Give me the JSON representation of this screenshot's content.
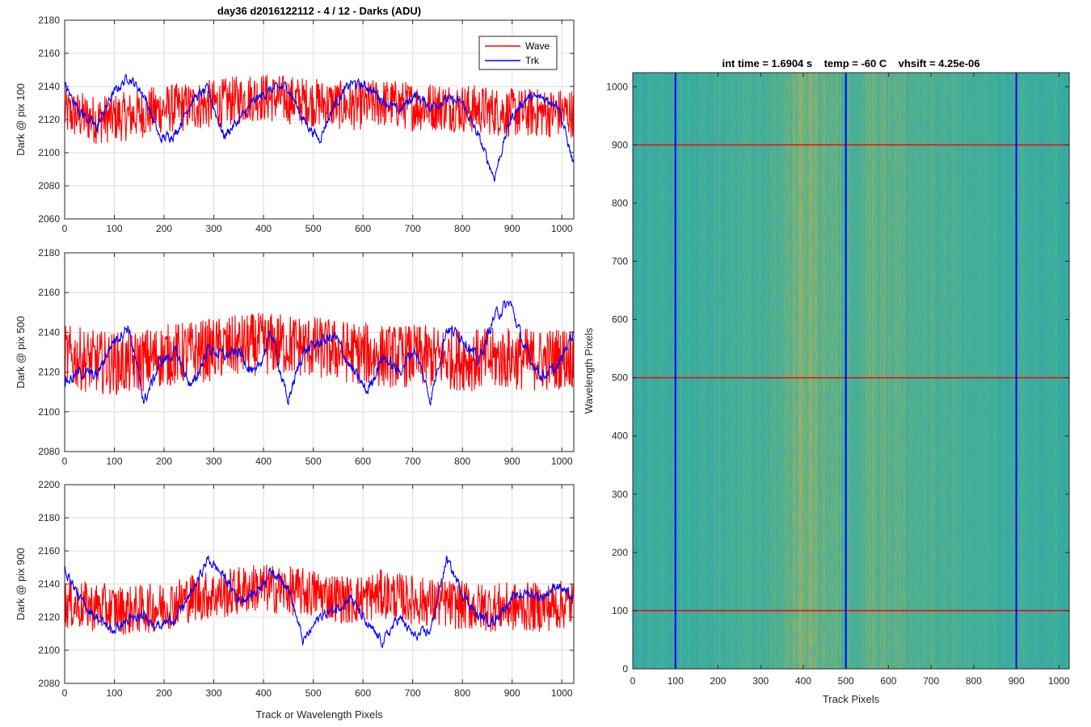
{
  "figure_title": "day36 d2016122112 - 4 / 12 - Darks (ADU)",
  "x_tick_labels": [
    "0",
    "100",
    "200",
    "300",
    "400",
    "500",
    "600",
    "700",
    "800",
    "900",
    "1000"
  ],
  "chart_data": [
    {
      "type": "line",
      "title": "day36 d2016122112 - 4 / 12 - Darks (ADU)",
      "ylabel": "Dark @ pix 100",
      "xlabel": "",
      "xlim": [
        0,
        1024
      ],
      "ylim": [
        2060,
        2180
      ],
      "yticks": [
        2060,
        2080,
        2100,
        2120,
        2140,
        2160,
        2180
      ],
      "grid": true,
      "legend": {
        "placement": "top-right",
        "entries": [
          "Wave",
          "Trk"
        ]
      },
      "series": [
        {
          "name": "Wave",
          "color": "#ff0000",
          "x": [
            0,
            64,
            128,
            192,
            256,
            320,
            384,
            448,
            512,
            576,
            640,
            704,
            768,
            832,
            896,
            960,
            1024
          ],
          "values": [
            2124,
            2120,
            2122,
            2126,
            2128,
            2130,
            2134,
            2132,
            2130,
            2128,
            2130,
            2128,
            2128,
            2126,
            2124,
            2124,
            2124
          ],
          "noise_amplitude": 15
        },
        {
          "name": "Trk",
          "color": "#0000ff",
          "x": [
            0,
            32,
            64,
            96,
            128,
            160,
            192,
            224,
            256,
            288,
            320,
            352,
            384,
            416,
            448,
            480,
            512,
            544,
            576,
            608,
            640,
            672,
            704,
            736,
            768,
            800,
            832,
            864,
            896,
            928,
            960,
            992,
            1024
          ],
          "values": [
            2140,
            2125,
            2115,
            2135,
            2146,
            2135,
            2108,
            2112,
            2132,
            2138,
            2110,
            2120,
            2132,
            2138,
            2140,
            2120,
            2108,
            2130,
            2142,
            2140,
            2132,
            2125,
            2135,
            2128,
            2132,
            2130,
            2110,
            2085,
            2120,
            2133,
            2133,
            2130,
            2092
          ],
          "noise_amplitude": 6
        }
      ]
    },
    {
      "type": "line",
      "ylabel": "Dark @ pix 500",
      "xlabel": "",
      "xlim": [
        0,
        1024
      ],
      "ylim": [
        2080,
        2180
      ],
      "yticks": [
        2080,
        2100,
        2120,
        2140,
        2160,
        2180
      ],
      "grid": true,
      "series": [
        {
          "name": "Wave",
          "color": "#ff0000",
          "x": [
            0,
            64,
            128,
            192,
            256,
            320,
            384,
            448,
            512,
            576,
            640,
            704,
            768,
            832,
            896,
            960,
            1024
          ],
          "values": [
            2128,
            2125,
            2124,
            2128,
            2130,
            2132,
            2134,
            2134,
            2132,
            2130,
            2128,
            2128,
            2127,
            2126,
            2127,
            2126,
            2128
          ],
          "noise_amplitude": 16
        },
        {
          "name": "Trk",
          "color": "#0000ff",
          "x": [
            0,
            32,
            64,
            96,
            128,
            160,
            192,
            224,
            256,
            288,
            320,
            352,
            384,
            416,
            448,
            480,
            512,
            544,
            576,
            608,
            640,
            672,
            704,
            736,
            768,
            800,
            832,
            864,
            896,
            928,
            960,
            992,
            1024
          ],
          "values": [
            2115,
            2120,
            2118,
            2135,
            2143,
            2105,
            2125,
            2130,
            2112,
            2132,
            2128,
            2130,
            2118,
            2140,
            2105,
            2130,
            2135,
            2138,
            2122,
            2110,
            2128,
            2120,
            2132,
            2106,
            2142,
            2138,
            2125,
            2148,
            2155,
            2130,
            2118,
            2122,
            2142
          ],
          "noise_amplitude": 6
        }
      ]
    },
    {
      "type": "line",
      "ylabel": "Dark @ pix 900",
      "xlabel": "Track or Wavelength Pixels",
      "xlim": [
        0,
        1024
      ],
      "ylim": [
        2080,
        2200
      ],
      "yticks": [
        2080,
        2100,
        2120,
        2140,
        2160,
        2180,
        2200
      ],
      "grid": true,
      "series": [
        {
          "name": "Wave",
          "color": "#ff0000",
          "x": [
            0,
            64,
            128,
            192,
            256,
            320,
            384,
            448,
            512,
            576,
            640,
            704,
            768,
            832,
            896,
            960,
            1024
          ],
          "values": [
            2128,
            2126,
            2124,
            2126,
            2132,
            2134,
            2138,
            2136,
            2134,
            2130,
            2134,
            2130,
            2128,
            2126,
            2126,
            2126,
            2128
          ],
          "noise_amplitude": 15
        },
        {
          "name": "Trk",
          "color": "#0000ff",
          "x": [
            0,
            32,
            64,
            96,
            128,
            160,
            192,
            224,
            256,
            288,
            320,
            352,
            384,
            416,
            448,
            480,
            512,
            544,
            576,
            608,
            640,
            672,
            704,
            736,
            768,
            800,
            832,
            864,
            896,
            928,
            960,
            992,
            1024
          ],
          "values": [
            2150,
            2130,
            2120,
            2112,
            2118,
            2120,
            2115,
            2120,
            2135,
            2155,
            2145,
            2130,
            2135,
            2148,
            2140,
            2105,
            2120,
            2125,
            2132,
            2115,
            2105,
            2120,
            2108,
            2112,
            2155,
            2135,
            2120,
            2118,
            2130,
            2135,
            2132,
            2140,
            2130
          ],
          "noise_amplitude": 6
        }
      ]
    },
    {
      "type": "heatmap",
      "title": "int time = 1.6904 s    temp = -60 C    vhsift = 4.25e-06",
      "xlabel": "Track Pixels",
      "ylabel": "Wavelength Pixels",
      "xlim": [
        0,
        1024
      ],
      "ylim": [
        0,
        1024
      ],
      "xticks": [
        0,
        100,
        200,
        300,
        400,
        500,
        600,
        700,
        800,
        900,
        1000
      ],
      "yticks": [
        0,
        100,
        200,
        300,
        400,
        500,
        600,
        700,
        800,
        900,
        1000
      ],
      "colormap": "parula",
      "colors": {
        "low": "#1aa6b0",
        "mid": "#4cb38a",
        "high": "#c9b545"
      },
      "column_profile": {
        "x": [
          0,
          50,
          100,
          150,
          200,
          250,
          300,
          350,
          380,
          420,
          460,
          500,
          540,
          560,
          600,
          650,
          700,
          750,
          800,
          850,
          900,
          950,
          1000,
          1024
        ],
        "values": [
          0.3,
          0.3,
          0.32,
          0.35,
          0.4,
          0.42,
          0.45,
          0.55,
          0.7,
          0.72,
          0.6,
          0.5,
          0.58,
          0.66,
          0.62,
          0.52,
          0.48,
          0.45,
          0.42,
          0.38,
          0.34,
          0.33,
          0.32,
          0.3
        ]
      },
      "marker_lines": {
        "vertical_x": [
          100,
          500,
          900
        ],
        "vertical_color": "#0000ff",
        "horizontal_y": [
          100,
          500,
          900
        ],
        "horizontal_color": "#ff0000"
      }
    }
  ]
}
